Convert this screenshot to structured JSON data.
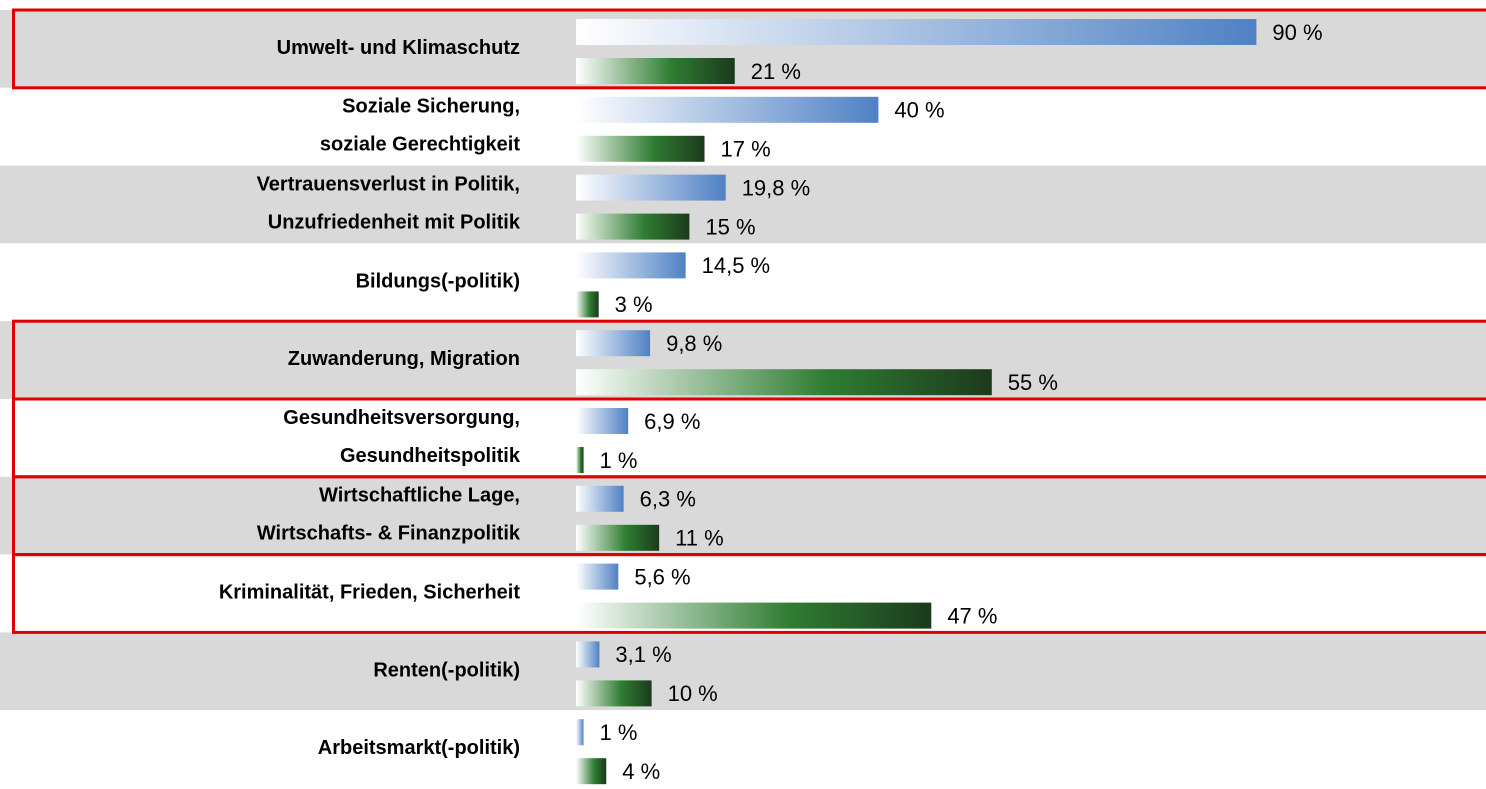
{
  "chart_data": {
    "type": "bar",
    "orientation": "horizontal",
    "categories": [
      [
        "Umwelt- und Klimaschutz"
      ],
      [
        "Soziale Sicherung,",
        "soziale Gerechtigkeit"
      ],
      [
        "Vertrauensverlust in Politik,",
        "Unzufriedenheit mit Politik"
      ],
      [
        "Bildungs(-politik)"
      ],
      [
        "Zuwanderung, Migration"
      ],
      [
        "Gesundheitsversorgung,",
        "Gesundheitspolitik"
      ],
      [
        "Wirtschaftliche Lage,",
        "Wirtschafts- & Finanzpolitik"
      ],
      [
        "Kriminalität, Frieden, Sicherheit"
      ],
      [
        "Renten(-politik)"
      ],
      [
        "Arbeitsmarkt(-politik)"
      ]
    ],
    "series": [
      {
        "color": "#4f81c4",
        "values": [
          90,
          40,
          19.8,
          14.5,
          9.8,
          6.9,
          6.3,
          5.6,
          3.1,
          1
        ],
        "value_labels": [
          "90 %",
          "40 %",
          "19,8 %",
          "14,5 %",
          "9,8 %",
          "6,9 %",
          "6,3 %",
          "5,6 %",
          "3,1 %",
          "1 %"
        ]
      },
      {
        "color": "#2f7d32",
        "values": [
          21,
          17,
          15,
          3,
          55,
          1,
          11,
          47,
          10,
          4
        ],
        "value_labels": [
          "21 %",
          "17 %",
          "15 %",
          "3 %",
          "55 %",
          "1 %",
          "11 %",
          "47 %",
          "10 %",
          "4 %"
        ]
      }
    ],
    "highlighted": [
      true,
      false,
      false,
      false,
      true,
      true,
      true,
      true,
      false,
      false
    ],
    "row_colors": [
      "#d9d9d9",
      "#ffffff"
    ],
    "highlight_color": "#e00000"
  }
}
